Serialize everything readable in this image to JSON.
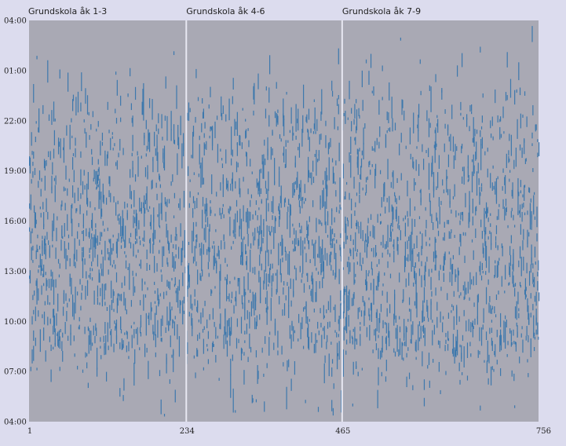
{
  "chart_data": {
    "type": "heatmap",
    "description_free": true,
    "panels": [
      {
        "title": "Grundskola åk 1-3",
        "x_start": 1,
        "x_end": 234
      },
      {
        "title": "Grundskola åk 4-6",
        "x_start": 234,
        "x_end": 465
      },
      {
        "title": "Grundskola åk 7-9",
        "x_start": 465,
        "x_end": 756
      }
    ],
    "x_ticks": [
      "1",
      "234",
      "465",
      "756"
    ],
    "x_tick_values": [
      1,
      234,
      465,
      756
    ],
    "xlim": [
      1,
      756
    ],
    "y_ticks": [
      "04:00",
      "01:00",
      "22:00",
      "19:00",
      "16:00",
      "13:00",
      "10:00",
      "07:00",
      "04:00"
    ],
    "y_tick_hours": [
      28,
      25,
      22,
      19,
      16,
      13,
      10,
      7,
      4
    ],
    "ylim_hours": [
      4,
      28
    ],
    "grid": false,
    "colors": {
      "panel_background": "#a9a9b4",
      "mark": "#3d78ad",
      "separator": "#e8e8f2",
      "page_background": "#dcdcee"
    },
    "density_profile_hours": [
      [
        4,
        0.02
      ],
      [
        6,
        0.15
      ],
      [
        7,
        0.35
      ],
      [
        8,
        0.7
      ],
      [
        9,
        0.9
      ],
      [
        10,
        0.85
      ],
      [
        11,
        0.75
      ],
      [
        12,
        0.85
      ],
      [
        13,
        0.9
      ],
      [
        14,
        1.0
      ],
      [
        15,
        1.0
      ],
      [
        16,
        0.95
      ],
      [
        17,
        0.8
      ],
      [
        18,
        0.7
      ],
      [
        19,
        0.6
      ],
      [
        20,
        0.65
      ],
      [
        21,
        0.55
      ],
      [
        22,
        0.5
      ],
      [
        23,
        0.25
      ],
      [
        24,
        0.08
      ],
      [
        26,
        0.02
      ],
      [
        28,
        0.0
      ]
    ]
  }
}
